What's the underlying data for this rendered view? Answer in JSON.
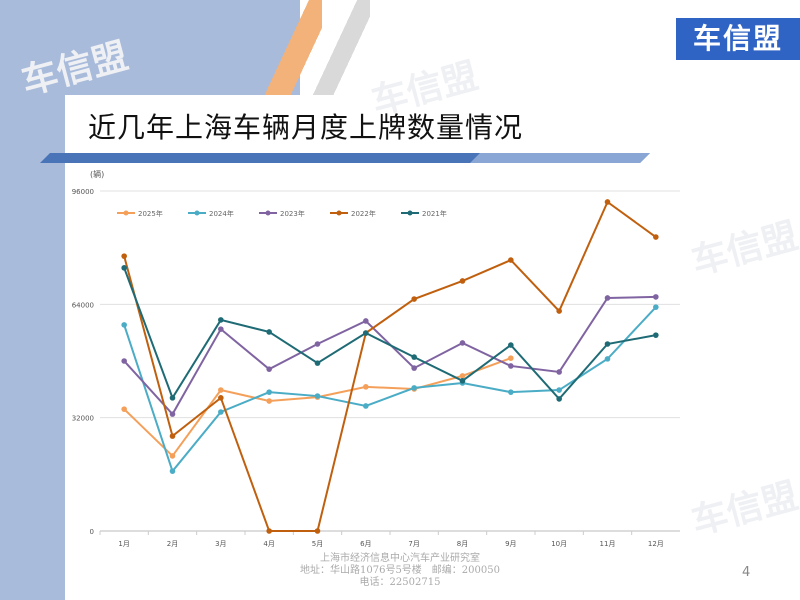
{
  "slide": {
    "title": "近几年上海车辆月度上牌数量情况",
    "logo_text": "车信盟",
    "watermark": "车信盟",
    "footer": [
      "上海市经济信息中心汽车产业研究室",
      "地址：华山路1076号5号楼　邮编：200050",
      "电话：22502715"
    ],
    "page_number": "4"
  },
  "chart_data": {
    "type": "line",
    "ylabel": "(辆)",
    "ylim": [
      0,
      96000
    ],
    "yticks": [
      "0",
      "32000",
      "64000",
      "96000"
    ],
    "categories": [
      "1月",
      "2月",
      "3月",
      "4月",
      "5月",
      "6月",
      "7月",
      "8月",
      "9月",
      "10月",
      "11月",
      "12月"
    ],
    "grid": true,
    "legend": "top-left",
    "series": [
      {
        "name": "2025年",
        "color": "#f4a05a",
        "values": [
          34400,
          21200,
          39800,
          36700,
          37800,
          40700,
          40100,
          43800,
          48800,
          null,
          null,
          null
        ]
      },
      {
        "name": "2024年",
        "color": "#4bacc6",
        "values": [
          58200,
          16900,
          33600,
          39200,
          38100,
          35300,
          40400,
          41800,
          39200,
          39800,
          48600,
          63200
        ]
      },
      {
        "name": "2023年",
        "color": "#8064a2",
        "values": [
          48000,
          33000,
          57000,
          45700,
          52800,
          59300,
          46000,
          53100,
          46600,
          44900,
          65800,
          66100
        ]
      },
      {
        "name": "2022年",
        "color": "#c0600f",
        "values": [
          77600,
          26800,
          37600,
          0,
          0,
          55900,
          65500,
          70600,
          76500,
          62100,
          92900,
          83000
        ]
      },
      {
        "name": "2021年",
        "color": "#1f6b75",
        "values": [
          74300,
          37600,
          59600,
          56200,
          47400,
          55900,
          49100,
          42400,
          52500,
          37300,
          52800,
          55300
        ]
      }
    ]
  }
}
